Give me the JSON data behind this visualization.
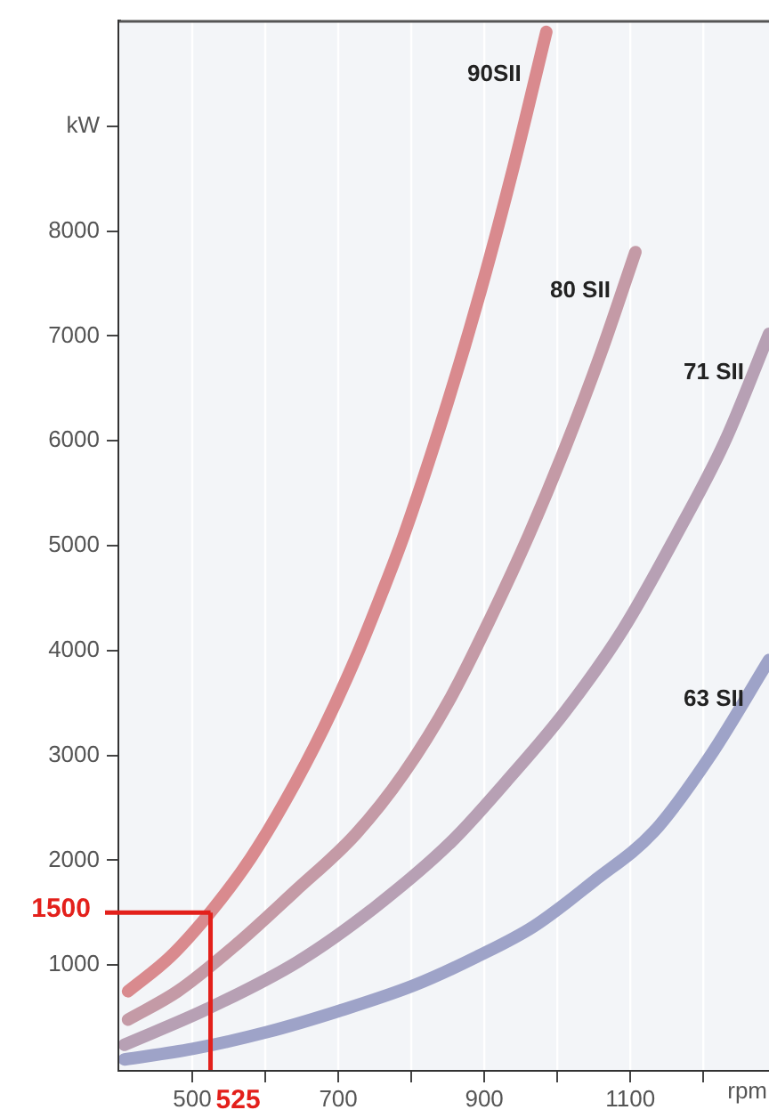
{
  "chart_data": {
    "type": "line",
    "xlabel": "rpm",
    "xlim": [
      400,
      1290
    ],
    "ylim": [
      0,
      10000
    ],
    "xticks": [
      500,
      {
        "value": 600,
        "label": null
      },
      700,
      {
        "value": 800,
        "label": null
      },
      900,
      {
        "value": 1000,
        "label": null
      },
      1100,
      {
        "value": 1200,
        "label": null
      }
    ],
    "yticks": [
      1000,
      2000,
      3000,
      4000,
      5000,
      6000,
      7000,
      8000,
      {
        "value": 9000,
        "label": "kW"
      }
    ],
    "grid": "x",
    "legend": false,
    "marker": "none",
    "line_style": "solid",
    "series": [
      {
        "name": "90SII",
        "color": "#d98a8e",
        "x": [
          412,
          470,
          529,
          580,
          627,
          680,
          724,
          760,
          790,
          850,
          895,
          940,
          985
        ],
        "values": [
          750,
          1080,
          1540,
          2020,
          2560,
          3260,
          3930,
          4550,
          5100,
          6370,
          7430,
          8610,
          9900
        ]
      },
      {
        "name": "80 SII",
        "color": "#c49aa6",
        "x": [
          412,
          480,
          561,
          640,
          724,
          790,
          854,
          910,
          961,
          1010,
          1060,
          1107
        ],
        "values": [
          480,
          750,
          1200,
          1700,
          2250,
          2830,
          3550,
          4330,
          5100,
          5920,
          6840,
          7800
        ]
      },
      {
        "name": "71 SII",
        "color": "#b7a0b4",
        "x": [
          407,
          520,
          644,
          750,
          854,
          930,
          1010,
          1090,
          1163,
          1230,
          1290
        ],
        "values": [
          240,
          580,
          1030,
          1550,
          2170,
          2750,
          3410,
          4200,
          5100,
          6000,
          7020
        ]
      },
      {
        "name": "63 SII",
        "color": "#9ea3c8",
        "x": [
          407,
          500,
          602,
          700,
          805,
          890,
          968,
          1050,
          1132,
          1210,
          1290
        ],
        "values": [
          100,
          200,
          360,
          560,
          810,
          1080,
          1370,
          1800,
          2270,
          3000,
          3910
        ]
      }
    ],
    "ref_lines": [
      {
        "axis": "y",
        "value": 1500,
        "label": "1500",
        "color": "#e3201b"
      },
      {
        "axis": "x",
        "value": 525,
        "label": "525",
        "color": "#e3201b"
      }
    ]
  }
}
